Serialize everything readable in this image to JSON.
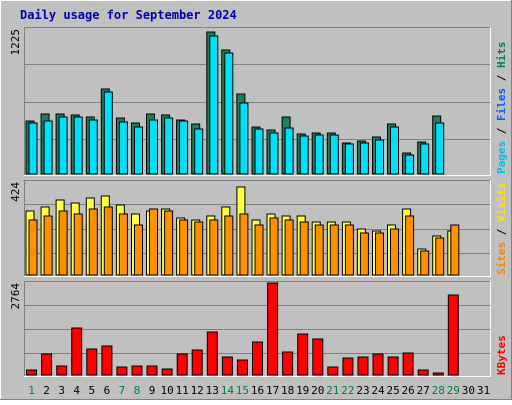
{
  "chart_data": [
    {
      "type": "bar",
      "title": "Daily usage for September 2024",
      "ymax_label": "1225",
      "ylim": [
        0,
        1225
      ],
      "right_labels": [
        {
          "text": "Pages",
          "color": "#00c0e0"
        },
        {
          "text": "Files",
          "color": "#0060ff"
        },
        {
          "text": "Hits",
          "color": "#008060"
        }
      ],
      "categories": [
        "1",
        "2",
        "3",
        "4",
        "5",
        "6",
        "7",
        "8",
        "9",
        "10",
        "11",
        "12",
        "13",
        "14",
        "15",
        "16",
        "17",
        "18",
        "19",
        "20",
        "21",
        "22",
        "23",
        "24",
        "25",
        "26",
        "27",
        "28",
        "29",
        "30",
        "31"
      ],
      "weekend_days": [
        1,
        7,
        8,
        14,
        15,
        21,
        22,
        28,
        29
      ],
      "series": [
        {
          "name": "Hits",
          "color": "#1a8060",
          "values": [
            450,
            510,
            510,
            500,
            480,
            720,
            470,
            430,
            510,
            500,
            460,
            420,
            1200,
            1050,
            680,
            400,
            370,
            480,
            340,
            350,
            350,
            260,
            280,
            310,
            420,
            180,
            270,
            490,
            0,
            0,
            0
          ]
        },
        {
          "name": "Pages",
          "color": "#00e0f8",
          "values": [
            430,
            450,
            480,
            480,
            460,
            690,
            440,
            400,
            460,
            470,
            450,
            380,
            1170,
            1020,
            600,
            380,
            350,
            390,
            320,
            330,
            330,
            250,
            260,
            290,
            400,
            160,
            250,
            430,
            0,
            0,
            0
          ]
        }
      ]
    },
    {
      "type": "bar",
      "ymax_label": "424",
      "ylim": [
        0,
        424
      ],
      "right_labels": [
        {
          "text": "Sites",
          "color": "#ff8000"
        },
        {
          "text": "Visits",
          "color": "#ffe000"
        }
      ],
      "categories": [
        "1",
        "2",
        "3",
        "4",
        "5",
        "6",
        "7",
        "8",
        "9",
        "10",
        "11",
        "12",
        "13",
        "14",
        "15",
        "16",
        "17",
        "18",
        "19",
        "20",
        "21",
        "22",
        "23",
        "24",
        "25",
        "26",
        "27",
        "28",
        "29",
        "30",
        "31"
      ],
      "series": [
        {
          "name": "Visits",
          "color": "#ffff40",
          "values": [
            290,
            310,
            340,
            330,
            350,
            360,
            320,
            280,
            290,
            300,
            260,
            250,
            270,
            310,
            400,
            250,
            280,
            270,
            270,
            240,
            240,
            240,
            210,
            200,
            230,
            300,
            120,
            180,
            200,
            0,
            0
          ]
        },
        {
          "name": "Sites",
          "color": "#ff9000",
          "values": [
            250,
            270,
            290,
            280,
            300,
            310,
            280,
            230,
            300,
            290,
            250,
            240,
            250,
            270,
            280,
            230,
            260,
            250,
            240,
            230,
            230,
            230,
            190,
            190,
            210,
            270,
            110,
            170,
            230,
            0,
            0
          ]
        }
      ]
    },
    {
      "type": "bar",
      "ymax_label": "2764",
      "ylim": [
        0,
        2764
      ],
      "right_labels": [
        {
          "text": "KBytes",
          "color": "#ff0000"
        }
      ],
      "categories": [
        "1",
        "2",
        "3",
        "4",
        "5",
        "6",
        "7",
        "8",
        "9",
        "10",
        "11",
        "12",
        "13",
        "14",
        "15",
        "16",
        "17",
        "18",
        "19",
        "20",
        "21",
        "22",
        "23",
        "24",
        "25",
        "26",
        "27",
        "28",
        "29",
        "30",
        "31"
      ],
      "series": [
        {
          "name": "KBytes",
          "color": "#ff0000",
          "values": [
            150,
            620,
            280,
            1420,
            780,
            870,
            230,
            270,
            270,
            190,
            620,
            740,
            1280,
            550,
            450,
            1000,
            2764,
            700,
            1220,
            1090,
            230,
            500,
            530,
            620,
            550,
            650,
            150,
            60,
            2400,
            0,
            0
          ]
        }
      ]
    }
  ]
}
